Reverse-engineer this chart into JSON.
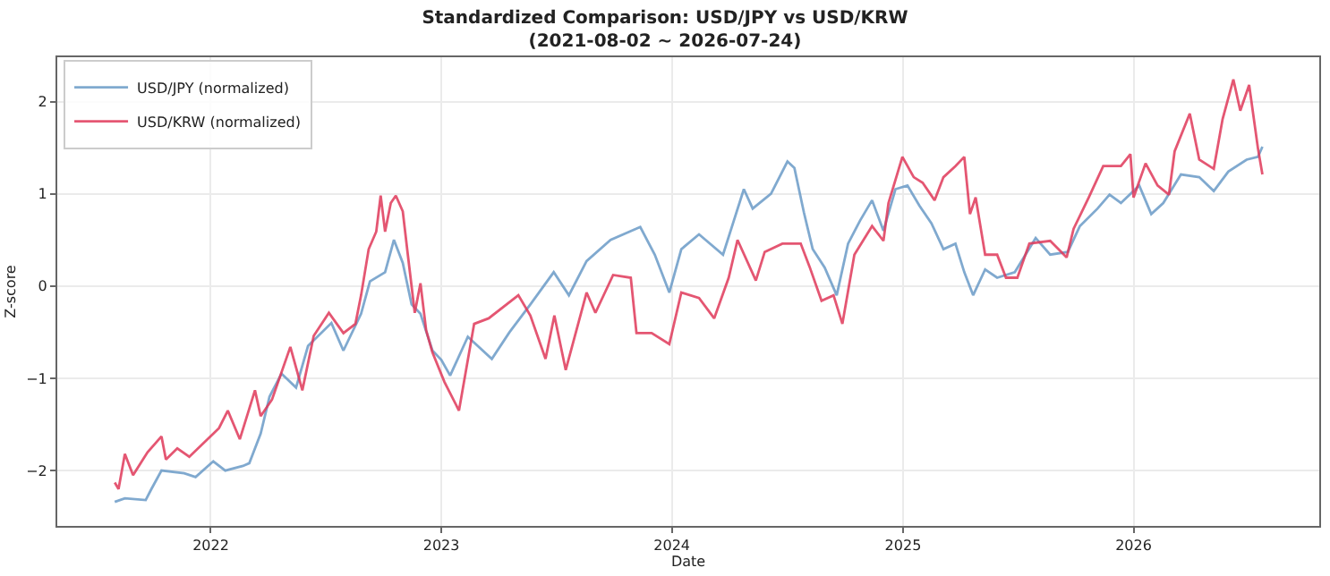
{
  "chart_data": {
    "type": "line",
    "title": "Standardized Comparison: USD/JPY vs USD/KRW\n(2021-08-02 ~ 2026-07-24)",
    "xlabel": "Date",
    "ylabel": "Z-score",
    "xlim": [
      "2021-05-03",
      "2026-10-22"
    ],
    "ylim": [
      -2.6,
      2.48
    ],
    "xticks": [
      {
        "value": "2022-01-01",
        "label": "2022"
      },
      {
        "value": "2023-01-01",
        "label": "2023"
      },
      {
        "value": "2024-01-01",
        "label": "2024"
      },
      {
        "value": "2025-01-01",
        "label": "2025"
      },
      {
        "value": "2026-01-01",
        "label": "2026"
      }
    ],
    "yticks": [
      {
        "value": -2,
        "label": "−2"
      },
      {
        "value": -1,
        "label": "−1"
      },
      0,
      1,
      2
    ],
    "grid": true,
    "legend": "top left",
    "marker": "none",
    "line_style": "solid",
    "series": [
      {
        "name": "USD/JPY (normalized)",
        "color": "#6a9bc7",
        "x": [
          "2021-08-02",
          "2021-08-18",
          "2021-09-20",
          "2021-09-29",
          "2021-10-15",
          "2021-11-20",
          "2021-12-08",
          "2022-01-05",
          "2022-01-24",
          "2022-02-21",
          "2022-03-03",
          "2022-03-21",
          "2022-04-04",
          "2022-04-23",
          "2022-05-16",
          "2022-06-04",
          "2022-07-11",
          "2022-07-30",
          "2022-08-27",
          "2022-09-10",
          "2022-10-04",
          "2022-10-18",
          "2022-11-01",
          "2022-11-15",
          "2022-11-29",
          "2022-12-18",
          "2023-01-01",
          "2023-01-15",
          "2023-02-12",
          "2023-03-22",
          "2023-04-19",
          "2023-05-22",
          "2023-06-28",
          "2023-07-22",
          "2023-08-19",
          "2023-09-26",
          "2023-11-12",
          "2023-12-05",
          "2023-12-28",
          "2024-01-16",
          "2024-02-13",
          "2024-03-22",
          "2024-04-24",
          "2024-05-08",
          "2024-06-06",
          "2024-07-02",
          "2024-07-13",
          "2024-07-28",
          "2024-08-11",
          "2024-08-30",
          "2024-09-18",
          "2024-10-06",
          "2024-10-25",
          "2024-11-13",
          "2024-12-01",
          "2024-12-20",
          "2025-01-08",
          "2025-01-27",
          "2025-02-15",
          "2025-03-06",
          "2025-03-25",
          "2025-04-08",
          "2025-04-22",
          "2025-05-11",
          "2025-05-30",
          "2025-06-27",
          "2025-07-30",
          "2025-08-22",
          "2025-09-19",
          "2025-10-08",
          "2025-11-05",
          "2025-11-24",
          "2025-12-12",
          "2026-01-10",
          "2026-01-29",
          "2026-02-17",
          "2026-03-17",
          "2026-04-15",
          "2026-05-08",
          "2026-05-31",
          "2026-06-29",
          "2026-07-17",
          "2026-07-24"
        ],
        "values": [
          -2.34,
          -2.3,
          -2.32,
          -2.2,
          -2.0,
          -2.03,
          -2.07,
          -1.9,
          -2.0,
          -1.95,
          -1.92,
          -1.6,
          -1.2,
          -0.95,
          -1.1,
          -0.65,
          -0.4,
          -0.7,
          -0.3,
          0.05,
          0.15,
          0.5,
          0.25,
          -0.2,
          -0.3,
          -0.7,
          -0.8,
          -0.97,
          -0.55,
          -0.79,
          -0.5,
          -0.2,
          0.15,
          -0.1,
          0.27,
          0.5,
          0.64,
          0.34,
          -0.07,
          0.4,
          0.56,
          0.34,
          1.05,
          0.84,
          1.0,
          1.35,
          1.28,
          0.8,
          0.4,
          0.2,
          -0.1,
          0.46,
          0.71,
          0.93,
          0.6,
          1.05,
          1.09,
          0.87,
          0.68,
          0.4,
          0.46,
          0.15,
          -0.1,
          0.18,
          0.09,
          0.15,
          0.52,
          0.34,
          0.37,
          0.65,
          0.84,
          0.99,
          0.9,
          1.09,
          0.78,
          0.9,
          1.21,
          1.18,
          1.03,
          1.24,
          1.37,
          1.4,
          1.51
        ]
      },
      {
        "name": "USD/KRW (normalized)",
        "color": "#e0395a",
        "x": [
          "2021-08-02",
          "2021-08-08",
          "2021-08-18",
          "2021-08-31",
          "2021-09-23",
          "2021-10-15",
          "2021-10-22",
          "2021-11-09",
          "2021-11-28",
          "2021-12-27",
          "2022-01-14",
          "2022-01-28",
          "2022-02-16",
          "2022-03-12",
          "2022-03-21",
          "2022-04-08",
          "2022-05-07",
          "2022-05-26",
          "2022-06-13",
          "2022-07-07",
          "2022-07-30",
          "2022-08-18",
          "2022-08-27",
          "2022-09-08",
          "2022-09-20",
          "2022-09-27",
          "2022-10-04",
          "2022-10-13",
          "2022-10-21",
          "2022-11-01",
          "2022-11-09",
          "2022-11-20",
          "2022-11-29",
          "2022-12-08",
          "2022-12-18",
          "2023-01-06",
          "2023-01-29",
          "2023-02-22",
          "2023-03-17",
          "2023-05-03",
          "2023-05-22",
          "2023-06-15",
          "2023-06-29",
          "2023-07-17",
          "2023-08-19",
          "2023-09-02",
          "2023-09-30",
          "2023-10-28",
          "2023-11-06",
          "2023-11-30",
          "2023-12-28",
          "2024-01-16",
          "2024-02-13",
          "2024-03-08",
          "2024-03-31",
          "2024-04-14",
          "2024-05-13",
          "2024-05-27",
          "2024-06-24",
          "2024-07-23",
          "2024-08-06",
          "2024-08-25",
          "2024-09-13",
          "2024-09-27",
          "2024-10-16",
          "2024-11-13",
          "2024-12-01",
          "2024-12-09",
          "2024-12-31",
          "2025-01-18",
          "2025-02-01",
          "2025-02-20",
          "2025-03-06",
          "2025-03-25",
          "2025-04-08",
          "2025-04-17",
          "2025-04-26",
          "2025-05-11",
          "2025-05-30",
          "2025-06-13",
          "2025-07-01",
          "2025-07-20",
          "2025-08-22",
          "2025-09-17",
          "2025-09-28",
          "2025-10-22",
          "2025-11-14",
          "2025-12-12",
          "2025-12-27",
          "2026-01-01",
          "2026-01-20",
          "2026-02-08",
          "2026-02-26",
          "2026-03-07",
          "2026-03-31",
          "2026-04-15",
          "2026-05-08",
          "2026-05-22",
          "2026-06-08",
          "2026-06-19",
          "2026-07-03",
          "2026-07-17",
          "2026-07-24"
        ],
        "values": [
          -2.13,
          -2.2,
          -1.82,
          -2.05,
          -1.8,
          -1.63,
          -1.88,
          -1.76,
          -1.85,
          -1.66,
          -1.54,
          -1.35,
          -1.66,
          -1.13,
          -1.41,
          -1.23,
          -0.66,
          -1.13,
          -0.54,
          -0.29,
          -0.51,
          -0.41,
          -0.1,
          0.4,
          0.59,
          0.98,
          0.59,
          0.9,
          0.98,
          0.81,
          0.34,
          -0.29,
          0.03,
          -0.48,
          -0.72,
          -1.04,
          -1.35,
          -0.41,
          -0.35,
          -0.1,
          -0.32,
          -0.79,
          -0.32,
          -0.91,
          -0.07,
          -0.29,
          0.12,
          0.09,
          -0.51,
          -0.51,
          -0.63,
          -0.07,
          -0.13,
          -0.35,
          0.09,
          0.5,
          0.06,
          0.37,
          0.46,
          0.46,
          0.21,
          -0.16,
          -0.1,
          -0.41,
          0.34,
          0.65,
          0.49,
          0.9,
          1.4,
          1.18,
          1.12,
          0.93,
          1.18,
          1.3,
          1.4,
          0.78,
          0.96,
          0.34,
          0.34,
          0.09,
          0.09,
          0.46,
          0.49,
          0.31,
          0.62,
          0.96,
          1.3,
          1.3,
          1.43,
          0.96,
          1.33,
          1.09,
          0.99,
          1.46,
          1.87,
          1.37,
          1.27,
          1.81,
          2.24,
          1.9,
          2.18,
          1.49,
          1.21
        ]
      }
    ]
  }
}
